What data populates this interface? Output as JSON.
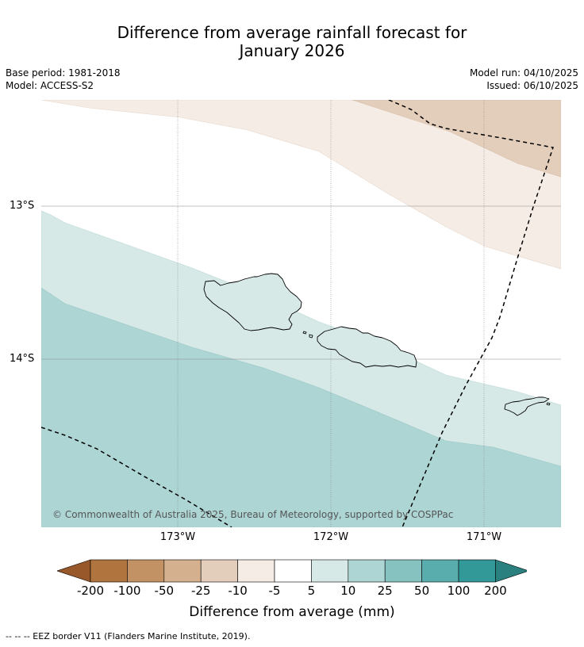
{
  "title": {
    "line1": "Difference from average rainfall forecast for",
    "line2": "January 2026"
  },
  "meta": {
    "base_period": "Base period: 1981-2018",
    "model": "Model: ACCESS-S2",
    "model_run": "Model run: 04/10/2025",
    "issued": "Issued: 06/10/2025"
  },
  "map": {
    "latitude_labels": [
      "13°S",
      "14°S"
    ],
    "longitude_labels": [
      "173°W",
      "172°W",
      "171°W"
    ],
    "credit": "© Commonwealth of Australia 2025, Bureau of Meteorology, supported by COSPPac"
  },
  "colorbar": {
    "title": "Difference from average (mm)",
    "ticks": [
      "-200",
      "-100",
      "-50",
      "-25",
      "-10",
      "-5",
      "5",
      "10",
      "25",
      "50",
      "100",
      "200"
    ],
    "colors": {
      "extend_low": "#99582a",
      "bins": [
        "#b0743e",
        "#c29265",
        "#d4b08f",
        "#e3cebb",
        "#f5ece6",
        "#ffffff",
        "#d6e9e7",
        "#acd5d4",
        "#86c2c0",
        "#5aadad",
        "#339898"
      ],
      "extend_high": "#2a7f7f"
    }
  },
  "footnote": "--  --  -- EEZ border V11 (Flanders Marine Institute, 2019)."
}
